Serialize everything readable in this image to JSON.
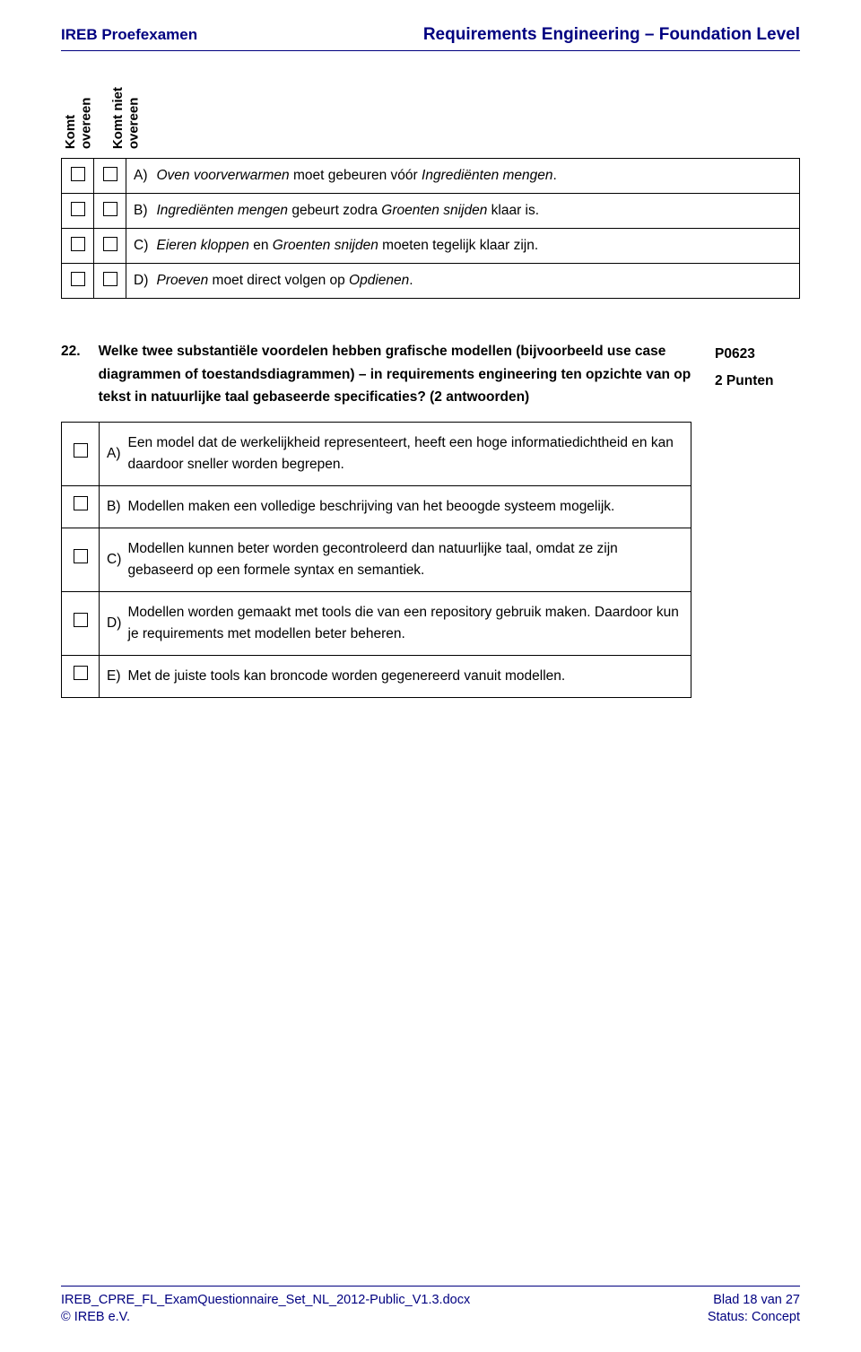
{
  "header": {
    "left": "IREB Proefexamen",
    "right": "Requirements Engineering – Foundation Level"
  },
  "vlabels": {
    "col1_line1": "Komt",
    "col1_line2": "overeen",
    "col2_line1": "Komt niet",
    "col2_line2": "overeen"
  },
  "q21": {
    "a_label": "A)",
    "a_pre": "Oven voorverwarmen",
    "a_mid": " moet gebeuren vóór ",
    "a_post": "Ingrediënten mengen",
    "a_end": ".",
    "b_label": "B)",
    "b_pre": "Ingrediënten mengen",
    "b_mid": " gebeurt zodra ",
    "b_post": "Groenten snijden",
    "b_end": " klaar is.",
    "c_label": "C)",
    "c_pre": "Eieren kloppen",
    "c_mid": " en ",
    "c_post": "Groenten snijden",
    "c_end": " moeten tegelijk klaar zijn.",
    "d_label": "D)",
    "d_pre": "Proeven",
    "d_mid": " moet direct volgen op ",
    "d_post": "Opdienen",
    "d_end": "."
  },
  "q22": {
    "number": "22.",
    "question": "Welke twee substantiële voordelen hebben grafische modellen (bijvoorbeeld use case diagrammen of toestandsdiagrammen) – in requirements engineering ten opzichte van op tekst in natuurlijke taal gebaseerde specificaties? (2 antwoorden)",
    "code": "P0623",
    "points": "2 Punten",
    "a_label": "A)",
    "a_text": "Een model dat de werkelijkheid representeert, heeft een hoge informatiedichtheid en kan daardoor sneller worden begrepen.",
    "b_label": "B)",
    "b_text": "Modellen maken een volledige beschrijving van het beoogde systeem mogelijk.",
    "c_label": "C)",
    "c_text": "Modellen kunnen beter worden gecontroleerd dan natuurlijke taal, omdat ze zijn gebaseerd op een formele syntax en semantiek.",
    "d_label": "D)",
    "d_text": "Modellen worden gemaakt met tools die van een repository gebruik maken. Daardoor kun je requirements met modellen beter beheren.",
    "e_label": "E)",
    "e_text": "Met de juiste tools kan broncode worden gegenereerd vanuit modellen."
  },
  "footer": {
    "file": "IREB_CPRE_FL_ExamQuestionnaire_Set_NL_2012-Public_V1.3.docx",
    "copyright": "© IREB e.V.",
    "page": "Blad 18 van 27",
    "status": "Status: Concept"
  }
}
